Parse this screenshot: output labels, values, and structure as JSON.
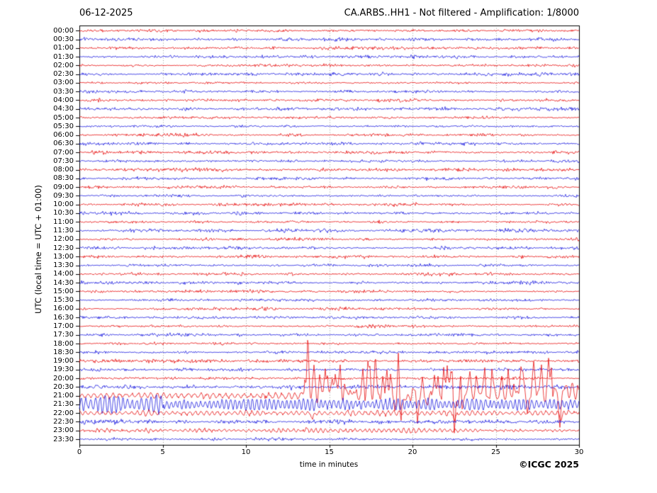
{
  "footer": {
    "copyright": "©ICGC 2025"
  },
  "chart_data": {
    "type": "line",
    "subtype": "helicorder-seismogram",
    "title_left": "06-12-2025",
    "title_right": "CA.ARBS..HH1 - Not filtered - Amplification: 1/8000",
    "xlabel": "time in minutes",
    "ylabel": "UTC (local time = UTC + 01:00)",
    "x_range": [
      0,
      30
    ],
    "x_ticks": [
      0,
      5,
      10,
      15,
      20,
      25,
      30
    ],
    "grid_minutes": [
      5,
      10,
      15,
      20,
      25
    ],
    "minutes_per_row": 30,
    "legend_position": "none",
    "colors": {
      "red": "#e60000",
      "blue": "#1212dd",
      "grid": "#999999",
      "frame": "#000000"
    },
    "rows": [
      {
        "t": "00:00",
        "c": "red",
        "n": 1.1
      },
      {
        "t": "00:30",
        "c": "blue",
        "n": 1.1
      },
      {
        "t": "01:00",
        "c": "red",
        "n": 1.1
      },
      {
        "t": "01:30",
        "c": "blue",
        "n": 1.2
      },
      {
        "t": "02:00",
        "c": "red",
        "n": 1.1
      },
      {
        "t": "02:30",
        "c": "blue",
        "n": 1.1
      },
      {
        "t": "03:00",
        "c": "red",
        "n": 1.0
      },
      {
        "t": "03:30",
        "c": "blue",
        "n": 1.0
      },
      {
        "t": "04:00",
        "c": "red",
        "n": 1.1
      },
      {
        "t": "04:30",
        "c": "blue",
        "n": 1.2
      },
      {
        "t": "05:00",
        "c": "red",
        "n": 1.1
      },
      {
        "t": "05:30",
        "c": "blue",
        "n": 1.0
      },
      {
        "t": "06:00",
        "c": "red",
        "n": 1.2
      },
      {
        "t": "06:30",
        "c": "blue",
        "n": 1.2
      },
      {
        "t": "07:00",
        "c": "red",
        "n": 1.1
      },
      {
        "t": "07:30",
        "c": "blue",
        "n": 1.1
      },
      {
        "t": "08:00",
        "c": "red",
        "n": 1.1
      },
      {
        "t": "08:30",
        "c": "blue",
        "n": 1.0
      },
      {
        "t": "09:00",
        "c": "red",
        "n": 1.1
      },
      {
        "t": "09:30",
        "c": "blue",
        "n": 1.1
      },
      {
        "t": "10:00",
        "c": "red",
        "n": 1.1
      },
      {
        "t": "10:30",
        "c": "blue",
        "n": 1.1
      },
      {
        "t": "11:00",
        "c": "red",
        "n": 1.0
      },
      {
        "t": "11:30",
        "c": "blue",
        "n": 1.3
      },
      {
        "t": "12:00",
        "c": "red",
        "n": 1.1
      },
      {
        "t": "12:30",
        "c": "blue",
        "n": 1.1
      },
      {
        "t": "13:00",
        "c": "red",
        "n": 1.1
      },
      {
        "t": "13:30",
        "c": "blue",
        "n": 1.1
      },
      {
        "t": "14:00",
        "c": "red",
        "n": 1.2
      },
      {
        "t": "14:30",
        "c": "blue",
        "n": 1.1
      },
      {
        "t": "15:00",
        "c": "red",
        "n": 1.1
      },
      {
        "t": "15:30",
        "c": "blue",
        "n": 1.0
      },
      {
        "t": "16:00",
        "c": "red",
        "n": 1.1
      },
      {
        "t": "16:30",
        "c": "blue",
        "n": 1.1
      },
      {
        "t": "17:00",
        "c": "red",
        "n": 1.0
      },
      {
        "t": "17:30",
        "c": "blue",
        "n": 1.1
      },
      {
        "t": "18:00",
        "c": "red",
        "n": 1.1
      },
      {
        "t": "18:30",
        "c": "blue",
        "n": 1.1
      },
      {
        "t": "19:00",
        "c": "red",
        "n": 1.2
      },
      {
        "t": "19:30",
        "c": "blue",
        "n": 1.1
      },
      {
        "t": "20:00",
        "c": "red",
        "n": 1.2
      },
      {
        "t": "20:30",
        "c": "blue",
        "n": 1.6
      },
      {
        "t": "21:00",
        "c": "red",
        "n": 1.3,
        "osc": [
          {
            "from": 0,
            "to": 13.5,
            "amp": 3.5,
            "period": 9
          },
          {
            "from": 13.5,
            "to": 30,
            "amp": 7,
            "period": 11
          }
        ],
        "spikes": [
          [
            13.7,
            48
          ],
          [
            14.9,
            34
          ],
          [
            17.3,
            45
          ],
          [
            17.75,
            40
          ],
          [
            19.15,
            60
          ],
          [
            19.3,
            -50
          ],
          [
            22.5,
            -66
          ],
          [
            22.9,
            40
          ],
          [
            28.35,
            44
          ],
          [
            28.85,
            -42
          ]
        ],
        "burst": {
          "from": 13.5,
          "to": 30,
          "gap": 0.28,
          "hmin": 10,
          "hmax": 46,
          "down": 0.22
        }
      },
      {
        "t": "21:30",
        "c": "blue",
        "n": 1.3,
        "osc": [
          {
            "from": 0,
            "to": 5,
            "amp": 10.5,
            "period": 6.5
          },
          {
            "from": 5,
            "to": 30,
            "amp": 7,
            "period": 6
          }
        ]
      },
      {
        "t": "22:00",
        "c": "red",
        "n": 1.0,
        "osc": [
          {
            "from": 0,
            "to": 30,
            "amp": 2.6,
            "period": 8
          }
        ],
        "spikes": [
          [
            14.0,
            -9
          ],
          [
            22.55,
            -13
          ],
          [
            28.9,
            -9
          ]
        ]
      },
      {
        "t": "22:30",
        "c": "blue",
        "n": 1.5
      },
      {
        "t": "23:00",
        "c": "red",
        "n": 1.0,
        "osc": [
          {
            "from": 0,
            "to": 13.5,
            "amp": 1.3,
            "period": 7
          },
          {
            "from": 13.5,
            "to": 24,
            "amp": 2.6,
            "period": 7
          },
          {
            "from": 24,
            "to": 30,
            "amp": 1.3,
            "period": 7
          }
        ]
      },
      {
        "t": "23:30",
        "c": "blue",
        "n": 0.9
      }
    ]
  }
}
